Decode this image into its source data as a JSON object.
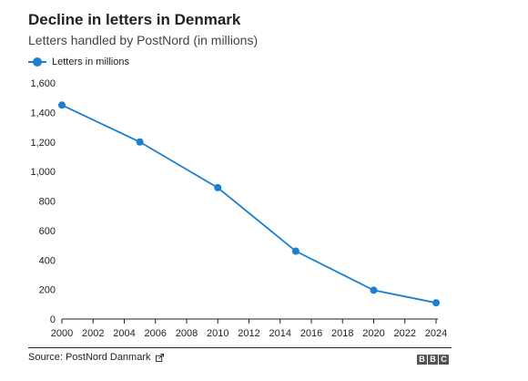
{
  "chart_data": {
    "type": "line",
    "title": "Decline in letters in Denmark",
    "subtitle": "Letters handled by PostNord (in millions)",
    "xlabel": "",
    "ylabel": "",
    "xlim": [
      2000,
      2024
    ],
    "ylim": [
      0,
      1600
    ],
    "x_ticks": [
      2000,
      2002,
      2004,
      2006,
      2008,
      2010,
      2012,
      2014,
      2016,
      2018,
      2020,
      2022,
      2024
    ],
    "y_ticks": [
      0,
      200,
      400,
      600,
      800,
      1000,
      1200,
      1400,
      1600
    ],
    "y_tick_labels": [
      "0",
      "200",
      "400",
      "600",
      "800",
      "1,000",
      "1,200",
      "1,400",
      "1,600"
    ],
    "grid": false,
    "legend_position": "top-left",
    "series": [
      {
        "name": "Letters in millions",
        "color": "#1a7fd0",
        "x": [
          2000,
          2005,
          2010,
          2015,
          2020,
          2024
        ],
        "values": [
          1450,
          1200,
          890,
          460,
          195,
          110
        ]
      }
    ]
  },
  "source": "Source: PostNord Danmark",
  "logo_letters": [
    "B",
    "B",
    "C"
  ]
}
